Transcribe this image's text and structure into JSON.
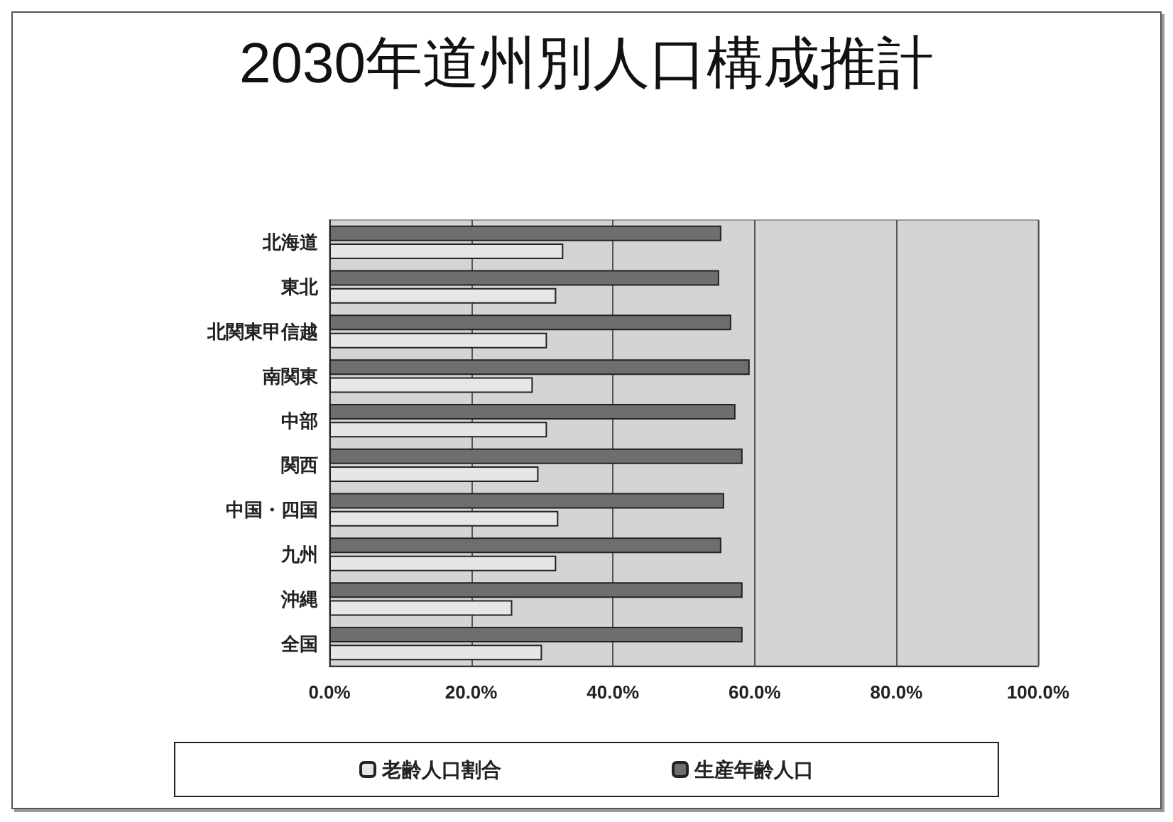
{
  "chart_data": {
    "type": "bar",
    "orientation": "horizontal",
    "title": "2030年道州別人口構成推計",
    "categories": [
      "北海道",
      "東北",
      "北関東甲信越",
      "南関東",
      "中部",
      "関西",
      "中国・四国",
      "九州",
      "沖縄",
      "全国"
    ],
    "series": [
      {
        "name": "老齢人口割合",
        "color": "#e6e6e6",
        "values": [
          0.33,
          0.32,
          0.307,
          0.287,
          0.307,
          0.295,
          0.323,
          0.32,
          0.258,
          0.3
        ]
      },
      {
        "name": "生産年齢人口",
        "color": "#6e6e6e",
        "values": [
          0.553,
          0.55,
          0.567,
          0.593,
          0.573,
          0.583,
          0.557,
          0.553,
          0.583,
          0.583
        ]
      }
    ],
    "xlim": [
      0,
      1
    ],
    "xticks": [
      {
        "value": 0,
        "label": "0.0%"
      },
      {
        "value": 0.2,
        "label": "20.0%"
      },
      {
        "value": 0.4,
        "label": "40.0%"
      },
      {
        "value": 0.6,
        "label": "60.0%"
      },
      {
        "value": 0.8,
        "label": "80.0%"
      },
      {
        "value": 1,
        "label": "100.0%"
      }
    ],
    "grid": "x",
    "legend": "bottom"
  }
}
